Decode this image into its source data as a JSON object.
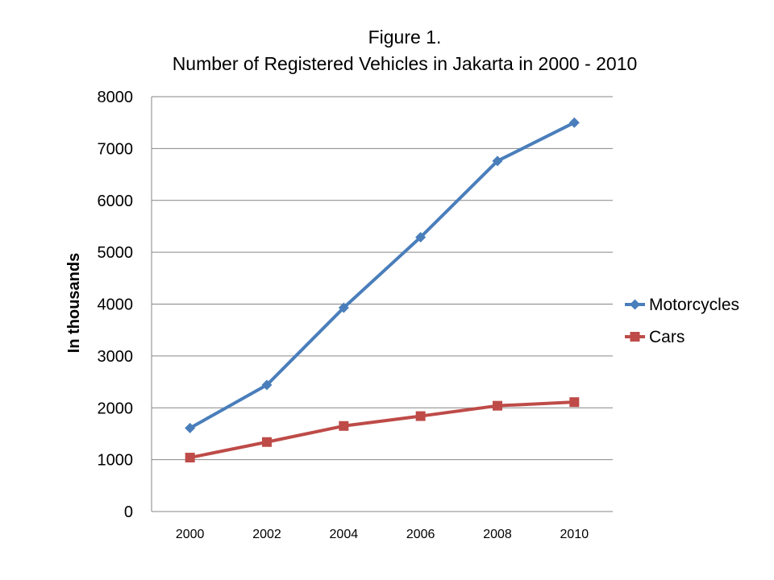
{
  "chart_data": {
    "type": "line",
    "title": [
      "Figure 1.",
      "Number of Registered Vehicles in Jakarta in 2000 - 2010"
    ],
    "xlabel": "",
    "ylabel": "In thousands",
    "categories": [
      "2000",
      "2002",
      "2004",
      "2006",
      "2008",
      "2010"
    ],
    "ylim": [
      0,
      8000
    ],
    "yticks": [
      "0",
      "1000",
      "2000",
      "3000",
      "4000",
      "5000",
      "6000",
      "7000",
      "8000"
    ],
    "grid": true,
    "legend_position": "right",
    "series": [
      {
        "name": "Motorcycles",
        "color": "#4A7EBB",
        "marker": "diamond",
        "values": [
          1610,
          2440,
          3930,
          5290,
          6760,
          7500
        ]
      },
      {
        "name": "Cars",
        "color": "#BE4B48",
        "marker": "square",
        "values": [
          1040,
          1340,
          1650,
          1840,
          2040,
          2110
        ]
      }
    ]
  }
}
